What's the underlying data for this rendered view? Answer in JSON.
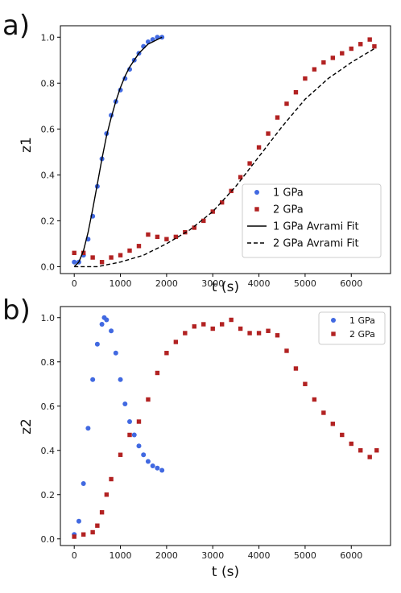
{
  "chart_data": [
    {
      "panel_label": "a)",
      "type": "scatter",
      "xlabel": "t (s)",
      "ylabel": "z1",
      "xlim": [
        -300,
        6850
      ],
      "ylim": [
        -0.03,
        1.05
      ],
      "xticks": [
        0,
        1000,
        2000,
        3000,
        4000,
        5000,
        6000
      ],
      "yticks": [
        0.0,
        0.2,
        0.4,
        0.6,
        0.8,
        1.0
      ],
      "legend_position": "lower-right",
      "series": [
        {
          "name": "1 GPa",
          "kind": "points",
          "marker": "circle",
          "color": "#4169e1",
          "x": [
            0,
            100,
            200,
            300,
            400,
            500,
            600,
            700,
            800,
            900,
            1000,
            1100,
            1200,
            1300,
            1400,
            1500,
            1600,
            1700,
            1800,
            1900
          ],
          "y": [
            0.02,
            0.02,
            0.05,
            0.12,
            0.22,
            0.35,
            0.47,
            0.58,
            0.66,
            0.72,
            0.77,
            0.82,
            0.86,
            0.9,
            0.93,
            0.96,
            0.98,
            0.99,
            1.0,
            1.0
          ]
        },
        {
          "name": "2 GPa",
          "kind": "points",
          "marker": "square",
          "color": "#b22222",
          "x": [
            0,
            200,
            400,
            600,
            800,
            1000,
            1200,
            1400,
            1600,
            1800,
            2000,
            2200,
            2400,
            2600,
            2800,
            3000,
            3200,
            3400,
            3600,
            3800,
            4000,
            4200,
            4400,
            4600,
            4800,
            5000,
            5200,
            5400,
            5600,
            5800,
            6000,
            6200,
            6400,
            6500
          ],
          "y": [
            0.06,
            0.06,
            0.04,
            0.02,
            0.04,
            0.05,
            0.07,
            0.09,
            0.14,
            0.13,
            0.12,
            0.13,
            0.15,
            0.17,
            0.2,
            0.24,
            0.28,
            0.33,
            0.39,
            0.45,
            0.52,
            0.58,
            0.65,
            0.71,
            0.76,
            0.82,
            0.86,
            0.89,
            0.91,
            0.93,
            0.95,
            0.97,
            0.99,
            0.96
          ]
        },
        {
          "name": "1 GPa Avrami Fit",
          "kind": "line",
          "dash": "solid",
          "color": "#000000",
          "x": [
            0,
            100,
            200,
            300,
            400,
            500,
            600,
            700,
            800,
            900,
            1000,
            1100,
            1200,
            1300,
            1400,
            1500,
            1600,
            1700,
            1800,
            1900
          ],
          "y": [
            0.0,
            0.02,
            0.07,
            0.15,
            0.25,
            0.36,
            0.47,
            0.57,
            0.65,
            0.72,
            0.78,
            0.83,
            0.87,
            0.9,
            0.93,
            0.95,
            0.97,
            0.98,
            0.99,
            1.0
          ]
        },
        {
          "name": "2 GPa Avrami Fit",
          "kind": "line",
          "dash": "dashed",
          "color": "#000000",
          "x": [
            0,
            500,
            1000,
            1500,
            2000,
            2500,
            3000,
            3500,
            4000,
            4500,
            5000,
            5500,
            6000,
            6500
          ],
          "y": [
            0.0,
            0.0,
            0.02,
            0.05,
            0.1,
            0.16,
            0.24,
            0.35,
            0.48,
            0.61,
            0.73,
            0.82,
            0.89,
            0.95
          ]
        }
      ]
    },
    {
      "panel_label": "b)",
      "type": "scatter",
      "xlabel": "t (s)",
      "ylabel": "z2",
      "xlim": [
        -300,
        6850
      ],
      "ylim": [
        -0.03,
        1.05
      ],
      "xticks": [
        0,
        1000,
        2000,
        3000,
        4000,
        5000,
        6000
      ],
      "yticks": [
        0.0,
        0.2,
        0.4,
        0.6,
        0.8,
        1.0
      ],
      "legend_position": "top-right",
      "series": [
        {
          "name": "1 GPa",
          "kind": "points",
          "marker": "circle",
          "color": "#4169e1",
          "x": [
            0,
            100,
            200,
            300,
            400,
            500,
            600,
            650,
            700,
            800,
            900,
            1000,
            1100,
            1200,
            1300,
            1400,
            1500,
            1600,
            1700,
            1800,
            1900
          ],
          "y": [
            0.02,
            0.08,
            0.25,
            0.5,
            0.72,
            0.88,
            0.97,
            1.0,
            0.99,
            0.94,
            0.84,
            0.72,
            0.61,
            0.53,
            0.47,
            0.42,
            0.38,
            0.35,
            0.33,
            0.32,
            0.31
          ]
        },
        {
          "name": "2 GPa",
          "kind": "points",
          "marker": "square",
          "color": "#b22222",
          "x": [
            0,
            200,
            400,
            500,
            600,
            700,
            800,
            1000,
            1200,
            1400,
            1600,
            1800,
            2000,
            2200,
            2400,
            2600,
            2800,
            3000,
            3200,
            3400,
            3600,
            3800,
            4000,
            4200,
            4400,
            4600,
            4800,
            5000,
            5200,
            5400,
            5600,
            5800,
            6000,
            6200,
            6400,
            6550
          ],
          "y": [
            0.01,
            0.02,
            0.03,
            0.06,
            0.12,
            0.2,
            0.27,
            0.38,
            0.47,
            0.53,
            0.63,
            0.75,
            0.84,
            0.89,
            0.93,
            0.96,
            0.97,
            0.95,
            0.97,
            0.99,
            0.95,
            0.93,
            0.93,
            0.94,
            0.92,
            0.85,
            0.77,
            0.7,
            0.63,
            0.57,
            0.52,
            0.47,
            0.43,
            0.4,
            0.37,
            0.4
          ]
        }
      ]
    }
  ]
}
